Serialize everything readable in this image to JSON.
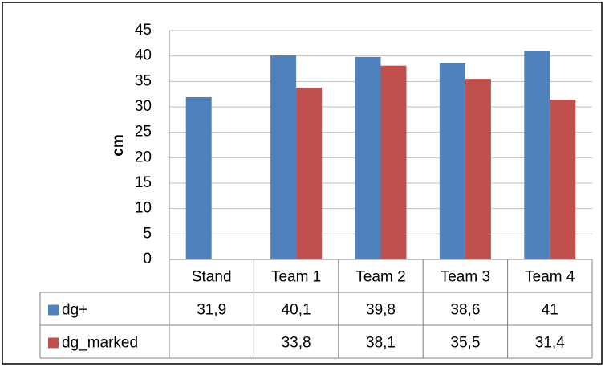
{
  "chart_data": {
    "type": "bar",
    "y_label": "cm",
    "categories": [
      "Stand",
      "Team 1",
      "Team 2",
      "Team 3",
      "Team 4"
    ],
    "series": [
      {
        "name": "dg+",
        "color": "#4f81bd",
        "values": [
          31.9,
          40.1,
          39.8,
          38.6,
          41
        ],
        "value_labels": [
          "31,9",
          "40,1",
          "39,8",
          "38,6",
          "41"
        ]
      },
      {
        "name": "dg_marked",
        "color": "#c0504d",
        "values": [
          null,
          33.8,
          38.1,
          35.5,
          31.4
        ],
        "value_labels": [
          null,
          "33,8",
          "38,1",
          "35,5",
          "31,4"
        ]
      }
    ],
    "ylim": [
      0,
      45
    ],
    "yticks": [
      0,
      5,
      10,
      15,
      20,
      25,
      30,
      35,
      40,
      45
    ],
    "grid": true,
    "data_table": true
  }
}
